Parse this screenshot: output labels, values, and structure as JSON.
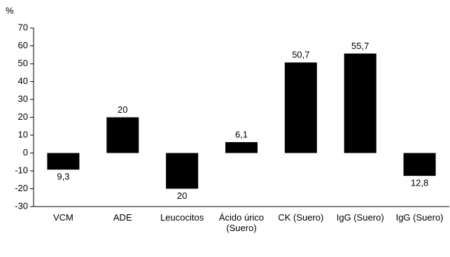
{
  "chart_data": {
    "type": "bar",
    "y_label": "%",
    "categories": [
      "VCM",
      "ADE",
      "Leucocitos",
      "Ácido úrico (Suero)",
      "CK (Suero)",
      "IgG (Suero)",
      "IgG (Suero)"
    ],
    "values": [
      -9.3,
      20,
      -20,
      6.1,
      50.7,
      55.7,
      -12.8
    ],
    "value_labels": [
      "9,3",
      "20",
      "20",
      "6,1",
      "50,7",
      "55,7",
      "12,8"
    ],
    "color": "#000000",
    "ylim": [
      -30,
      70
    ],
    "yticks": [
      -30,
      -20,
      -10,
      0,
      10,
      20,
      30,
      40,
      50,
      60,
      70
    ],
    "grid": false
  }
}
